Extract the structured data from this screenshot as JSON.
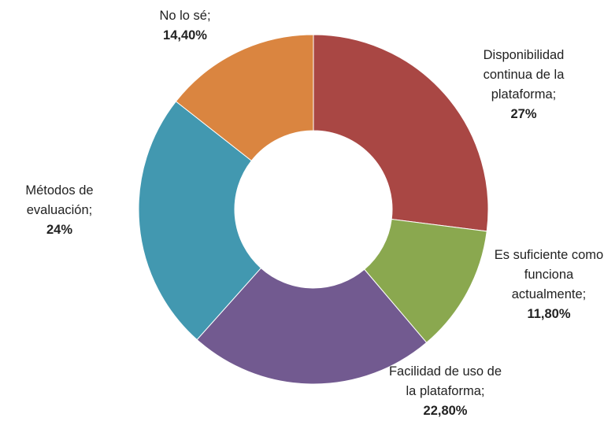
{
  "chart_data": {
    "type": "donut",
    "categories": [
      "Disponibilidad continua de la plataforma;",
      "Es suficiente como funciona actualmente;",
      "Facilidad de uso de la plataforma;",
      "Métodos de evaluación;",
      "No lo sé;"
    ],
    "values": [
      27,
      11.8,
      22.8,
      24,
      14.4
    ],
    "value_labels": [
      "27%",
      "11,80%",
      "22,80%",
      "24%",
      "14,40%"
    ],
    "colors": [
      "#a94744",
      "#8aa84f",
      "#725a90",
      "#4298b0",
      "#da8540"
    ]
  }
}
